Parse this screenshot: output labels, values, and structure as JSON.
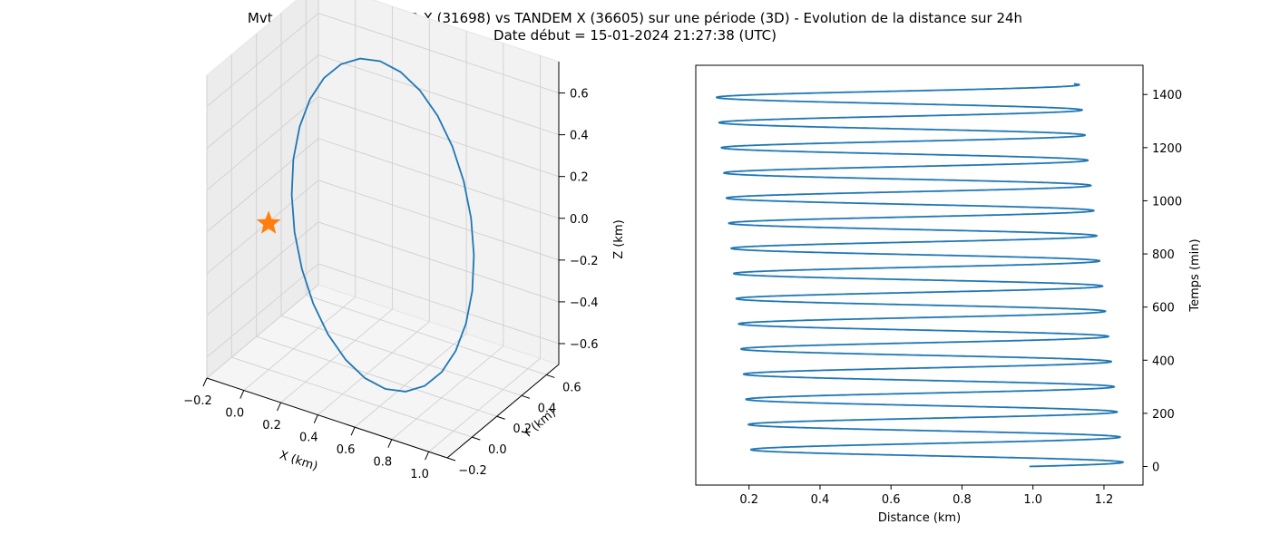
{
  "figure": {
    "title_line1": "Mvt relatif de TERRA SAR X (31698) vs TANDEM X (36605) sur une période (3D) - Evolution de la distance sur 24h",
    "title_line2": "Date début = 15-01-2024 21:27:38 (UTC)"
  },
  "colors": {
    "series": "#1f77b4",
    "marker": "#ff7f0e",
    "pane": "#f2f2f2",
    "grid": "#d0d0d0"
  },
  "chart_data": [
    {
      "type": "line-3d",
      "title": "",
      "xlabel": "X (km)",
      "ylabel": "Y (km)",
      "zlabel": "Z (km)",
      "x_ticks": [
        "−0.2",
        "0.0",
        "0.2",
        "0.4",
        "0.6",
        "0.8",
        "1.0"
      ],
      "y_ticks": [
        "−0.2",
        "0.0",
        "0.2",
        "0.4",
        "0.6"
      ],
      "z_ticks": [
        "−0.6",
        "−0.4",
        "−0.2",
        "0.0",
        "0.2",
        "0.4",
        "0.6"
      ],
      "xlim": [
        -0.2,
        1.1
      ],
      "ylim": [
        -0.2,
        0.7
      ],
      "zlim": [
        -0.7,
        0.75
      ],
      "series": [
        {
          "orbit_center": [
            0.45,
            0.25,
            0.0
          ],
          "orbit_radius_x": 0.45,
          "orbit_radius_y": 0.3,
          "orbit_amplitude_z": 0.6,
          "points": 28
        }
      ],
      "marker": {
        "shape": "star",
        "x": 0.0,
        "y": 0.0,
        "z": 0.0
      }
    },
    {
      "type": "line",
      "title": "",
      "xlabel": "Distance (km)",
      "ylabel": "Temps (min)",
      "x_ticks": [
        "0.2",
        "0.4",
        "0.6",
        "0.8",
        "1.0",
        "1.2"
      ],
      "y_ticks": [
        "0",
        "200",
        "400",
        "600",
        "800",
        "1000",
        "1200",
        "1400"
      ],
      "xlim": [
        0.05,
        1.31
      ],
      "ylim": [
        -70,
        1510
      ],
      "series": [
        {
          "start_distance": 0.99,
          "end_time": 1440,
          "period_min": 94.7,
          "distance_min_start": 0.21,
          "distance_min_end": 0.105,
          "distance_max_start": 1.255,
          "distance_max_end": 1.13
        }
      ]
    }
  ]
}
